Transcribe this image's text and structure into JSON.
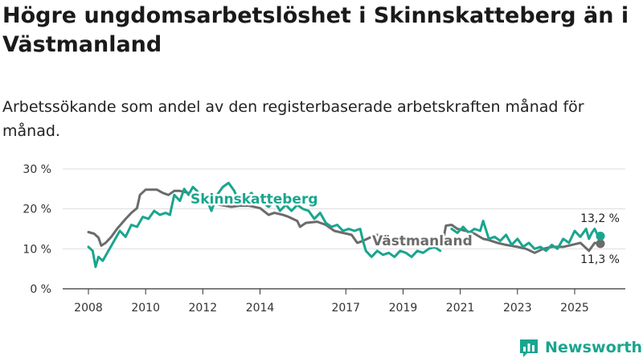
{
  "title": "Högre ungdomsarbetslöshet i Skinnskatteberg än i Västmanland",
  "subtitle": "Arbetssökande som andel av den registerbaserade arbetskraften månad för månad.",
  "brand": {
    "name": "Newsworthy",
    "color": "#1aa58f"
  },
  "colors": {
    "skinnskatteberg": "#1aa58f",
    "vastmanland": "#6b6b6b",
    "grid": "#dddddd",
    "axis": "#333333"
  },
  "chart_data": {
    "type": "line",
    "title": "Högre ungdomsarbetslöshet i Skinnskatteberg än i Västmanland",
    "xlabel": "",
    "ylabel": "",
    "x_range": [
      2008.0,
      2025.9
    ],
    "ylim": [
      0,
      30
    ],
    "y_ticks": [
      0,
      10,
      20,
      30
    ],
    "y_tick_labels": [
      "0 %",
      "10 %",
      "20 %",
      "30 %"
    ],
    "x_ticks": [
      2008,
      2010,
      2012,
      2014,
      2017,
      2019,
      2021,
      2023,
      2025
    ],
    "x_tick_labels": [
      "2008",
      "2010",
      "2012",
      "2014",
      "2017",
      "2019",
      "2021",
      "2023",
      "2025"
    ],
    "series": [
      {
        "name": "Västmanland",
        "label": "Västmanland",
        "end_label": "11,3 %",
        "points": [
          [
            2008.0,
            14.2
          ],
          [
            2008.2,
            13.8
          ],
          [
            2008.35,
            12.8
          ],
          [
            2008.45,
            10.8
          ],
          [
            2008.6,
            11.5
          ],
          [
            2008.8,
            13.0
          ],
          [
            2009.0,
            15.0
          ],
          [
            2009.3,
            17.5
          ],
          [
            2009.5,
            19.0
          ],
          [
            2009.7,
            20.2
          ],
          [
            2009.8,
            23.5
          ],
          [
            2010.0,
            24.8
          ],
          [
            2010.2,
            24.8
          ],
          [
            2010.4,
            24.8
          ],
          [
            2010.6,
            24.0
          ],
          [
            2010.8,
            23.5
          ],
          [
            2011.0,
            24.5
          ],
          [
            2011.2,
            24.5
          ],
          [
            2011.5,
            24.0
          ],
          [
            2011.7,
            23.0
          ],
          [
            2012.0,
            23.0
          ],
          [
            2012.3,
            22.0
          ],
          [
            2012.6,
            21.0
          ],
          [
            2013.0,
            20.5
          ],
          [
            2013.3,
            20.8
          ],
          [
            2013.6,
            20.8
          ],
          [
            2014.0,
            20.2
          ],
          [
            2014.3,
            18.5
          ],
          [
            2014.5,
            19.0
          ],
          [
            2014.8,
            18.5
          ],
          [
            2015.0,
            18.0
          ],
          [
            2015.3,
            17.0
          ],
          [
            2015.4,
            15.5
          ],
          [
            2015.6,
            16.5
          ],
          [
            2016.0,
            16.8
          ],
          [
            2016.3,
            16.0
          ],
          [
            2016.6,
            14.5
          ],
          [
            2016.9,
            14.0
          ],
          [
            2017.2,
            13.5
          ],
          [
            2017.4,
            11.5
          ],
          [
            2017.6,
            12.0
          ],
          [
            2017.9,
            13.0
          ],
          [
            2018.1,
            13.5
          ]
        ],
        "points_b": [
          [
            2020.4,
            12.0
          ],
          [
            2020.5,
            15.8
          ],
          [
            2020.7,
            16.0
          ],
          [
            2020.9,
            15.0
          ],
          [
            2021.2,
            14.5
          ],
          [
            2021.5,
            13.8
          ],
          [
            2021.8,
            12.5
          ],
          [
            2022.0,
            12.2
          ],
          [
            2022.3,
            11.5
          ],
          [
            2022.6,
            11.0
          ],
          [
            2023.0,
            10.5
          ],
          [
            2023.3,
            10.0
          ],
          [
            2023.6,
            9.0
          ],
          [
            2023.9,
            10.0
          ],
          [
            2024.2,
            10.5
          ],
          [
            2024.6,
            10.5
          ],
          [
            2024.9,
            11.0
          ],
          [
            2025.2,
            11.5
          ],
          [
            2025.5,
            9.5
          ],
          [
            2025.7,
            11.5
          ],
          [
            2025.9,
            11.3
          ]
        ]
      },
      {
        "name": "Skinnskatteberg",
        "label": "Skinnskatteberg",
        "end_label": "13,2 %",
        "points": [
          [
            2008.0,
            10.5
          ],
          [
            2008.15,
            9.5
          ],
          [
            2008.25,
            5.5
          ],
          [
            2008.35,
            8.0
          ],
          [
            2008.5,
            7.0
          ],
          [
            2008.7,
            9.5
          ],
          [
            2008.9,
            12.0
          ],
          [
            2009.1,
            14.5
          ],
          [
            2009.3,
            13.0
          ],
          [
            2009.5,
            16.0
          ],
          [
            2009.7,
            15.5
          ],
          [
            2009.9,
            18.0
          ],
          [
            2010.1,
            17.5
          ],
          [
            2010.3,
            19.5
          ],
          [
            2010.5,
            18.5
          ],
          [
            2010.7,
            19.0
          ],
          [
            2010.85,
            18.5
          ],
          [
            2011.0,
            23.5
          ],
          [
            2011.2,
            22.0
          ],
          [
            2011.35,
            25.0
          ],
          [
            2011.5,
            23.5
          ],
          [
            2011.65,
            25.5
          ],
          [
            2011.8,
            24.5
          ],
          [
            2011.95,
            22.0
          ],
          [
            2012.1,
            23.0
          ],
          [
            2012.3,
            19.5
          ],
          [
            2012.5,
            23.5
          ],
          [
            2012.7,
            25.5
          ],
          [
            2012.9,
            26.5
          ],
          [
            2013.1,
            24.5
          ],
          [
            2013.3,
            21.0
          ],
          [
            2013.5,
            22.5
          ],
          [
            2013.7,
            24.0
          ],
          [
            2013.9,
            22.0
          ],
          [
            2014.1,
            21.5
          ],
          [
            2014.3,
            20.5
          ],
          [
            2014.5,
            22.0
          ],
          [
            2014.7,
            19.5
          ],
          [
            2014.9,
            21.0
          ],
          [
            2015.1,
            19.5
          ],
          [
            2015.3,
            21.0
          ],
          [
            2015.5,
            20.0
          ],
          [
            2015.7,
            19.5
          ],
          [
            2015.9,
            17.5
          ],
          [
            2016.1,
            19.0
          ],
          [
            2016.3,
            16.5
          ],
          [
            2016.5,
            15.5
          ],
          [
            2016.7,
            16.0
          ],
          [
            2016.9,
            14.5
          ],
          [
            2017.1,
            15.0
          ],
          [
            2017.3,
            14.5
          ],
          [
            2017.5,
            15.0
          ],
          [
            2017.6,
            12.0
          ],
          [
            2017.7,
            9.5
          ],
          [
            2017.9,
            8.0
          ],
          [
            2018.1,
            9.5
          ],
          [
            2018.3,
            8.5
          ],
          [
            2018.5,
            9.0
          ],
          [
            2018.7,
            8.0
          ],
          [
            2018.9,
            9.5
          ],
          [
            2019.1,
            9.0
          ],
          [
            2019.3,
            8.0
          ],
          [
            2019.5,
            9.5
          ],
          [
            2019.7,
            9.0
          ],
          [
            2019.9,
            10.0
          ],
          [
            2020.1,
            10.5
          ],
          [
            2020.3,
            9.5
          ]
        ],
        "points_b": [
          [
            2020.7,
            15.0
          ],
          [
            2020.9,
            14.0
          ],
          [
            2021.1,
            15.5
          ],
          [
            2021.3,
            14.0
          ],
          [
            2021.5,
            15.0
          ],
          [
            2021.7,
            14.5
          ],
          [
            2021.8,
            17.0
          ],
          [
            2022.0,
            12.5
          ],
          [
            2022.2,
            13.0
          ],
          [
            2022.4,
            12.0
          ],
          [
            2022.6,
            13.5
          ],
          [
            2022.8,
            11.0
          ],
          [
            2023.0,
            12.5
          ],
          [
            2023.2,
            10.5
          ],
          [
            2023.4,
            11.5
          ],
          [
            2023.6,
            10.0
          ],
          [
            2023.8,
            10.5
          ],
          [
            2024.0,
            9.5
          ],
          [
            2024.2,
            11.0
          ],
          [
            2024.4,
            10.0
          ],
          [
            2024.6,
            12.5
          ],
          [
            2024.8,
            11.5
          ],
          [
            2025.0,
            14.5
          ],
          [
            2025.2,
            13.0
          ],
          [
            2025.4,
            15.0
          ],
          [
            2025.5,
            12.5
          ],
          [
            2025.6,
            14.0
          ],
          [
            2025.7,
            15.0
          ],
          [
            2025.8,
            13.5
          ],
          [
            2025.9,
            13.2
          ]
        ]
      }
    ]
  }
}
